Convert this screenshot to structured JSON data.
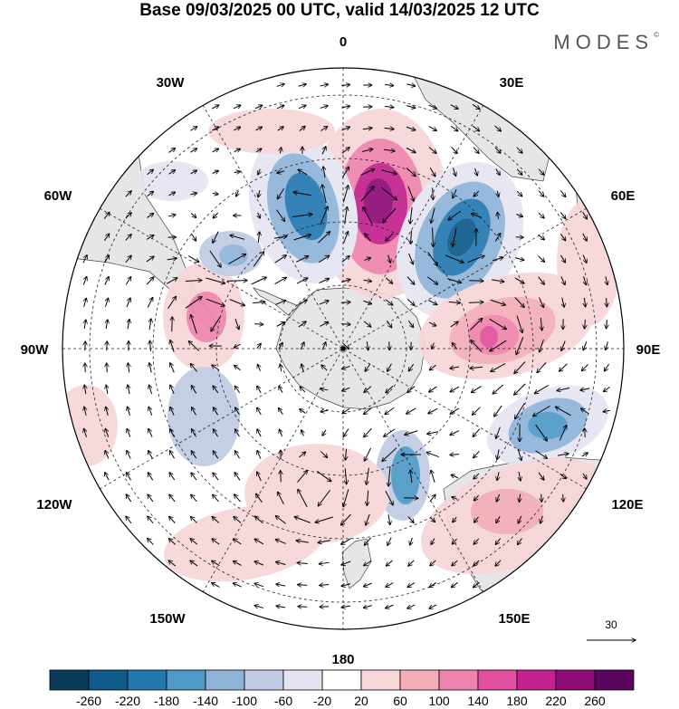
{
  "title": "Base 09/03/2025 00 UTC, valid 14/03/2025 12 UTC",
  "brand": {
    "name": "MODES",
    "mark": "©"
  },
  "map": {
    "projection": "south-polar-stereographic",
    "longitude_labels": {
      "top": "0",
      "bottom": "180",
      "left": "90W",
      "right": "90E",
      "upper_left_1": "30W",
      "upper_left_2": "60W",
      "upper_right_1": "30E",
      "upper_right_2": "60E",
      "lower_left_1": "120W",
      "lower_left_2": "150W",
      "lower_right_1": "120E",
      "lower_right_2": "150E"
    },
    "vector_reference": "30"
  },
  "colorbar": {
    "ticks": [
      "-260",
      "-220",
      "-180",
      "-140",
      "-100",
      "-60",
      "-20",
      "20",
      "60",
      "100",
      "140",
      "180",
      "220",
      "260"
    ],
    "colors": [
      "#0b3b5a",
      "#0e5a8a",
      "#2378b0",
      "#4f98c8",
      "#8fb4d8",
      "#c0cbe4",
      "#e5e5f2",
      "#ffffff",
      "#f7d6d8",
      "#f3aeb8",
      "#ee84ad",
      "#e1509e",
      "#c3218f",
      "#8e0c77",
      "#5b0560"
    ]
  },
  "anomalies": [
    {
      "type": "neg",
      "strength": 4,
      "label": "neg-0-west"
    },
    {
      "type": "pos",
      "strength": 5,
      "label": "pos-0"
    },
    {
      "type": "neg",
      "strength": 4,
      "label": "neg-30e"
    },
    {
      "type": "pos",
      "strength": 3,
      "label": "pos-75e"
    },
    {
      "type": "neg",
      "strength": 3,
      "label": "neg-115e"
    },
    {
      "type": "pos",
      "strength": 2,
      "label": "pos-75w"
    },
    {
      "type": "neg",
      "strength": 2,
      "label": "neg-170e"
    }
  ]
}
